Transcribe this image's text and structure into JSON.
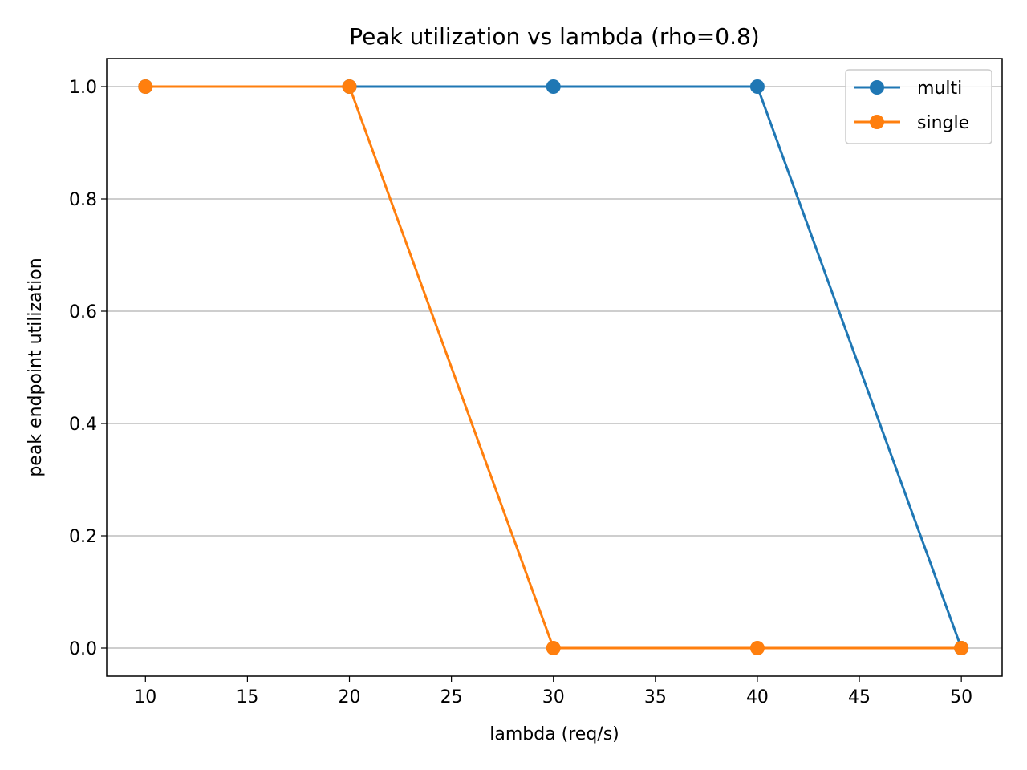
{
  "chart_data": {
    "type": "line",
    "title": "Peak utilization vs lambda (rho=0.8)",
    "xlabel": "lambda (req/s)",
    "ylabel": "peak endpoint utilization",
    "x": [
      10,
      20,
      30,
      40,
      50
    ],
    "series": [
      {
        "name": "multi",
        "color": "#1f77b4",
        "values": [
          1.0,
          1.0,
          1.0,
          1.0,
          0.0
        ]
      },
      {
        "name": "single",
        "color": "#ff7f0e",
        "values": [
          1.0,
          1.0,
          0.0,
          0.0,
          0.0
        ]
      }
    ],
    "xlim": [
      8.1,
      52
    ],
    "ylim": [
      -0.05,
      1.05
    ],
    "xticks": [
      10,
      15,
      20,
      25,
      30,
      35,
      40,
      45,
      50
    ],
    "xtick_labels": [
      "10",
      "15",
      "20",
      "25",
      "30",
      "35",
      "40",
      "45",
      "50"
    ],
    "yticks": [
      0.0,
      0.2,
      0.4,
      0.6,
      0.8,
      1.0
    ],
    "ytick_labels": [
      "0.0",
      "0.2",
      "0.4",
      "0.6",
      "0.8",
      "1.0"
    ],
    "grid": "y-major",
    "grid_color": "#b0b0b0",
    "legend_position": "top-right"
  }
}
